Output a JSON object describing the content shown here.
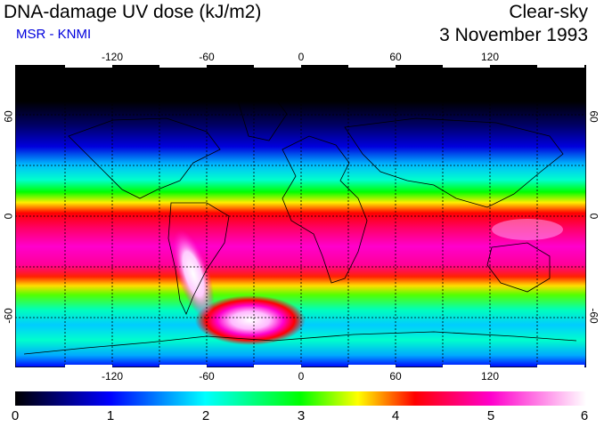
{
  "header": {
    "title": "DNA-damage UV dose (kJ/m2)",
    "subtitle": "MSR - KNMI",
    "sky": "Clear-sky",
    "date": "3 November 1993"
  },
  "axes": {
    "lon_ticks": [
      "-120",
      "-60",
      "0",
      "60",
      "120"
    ],
    "lat_left": [
      "60",
      "0",
      "-60"
    ],
    "lat_right": [
      "60",
      "0",
      "-60"
    ]
  },
  "colorbar": {
    "labels": [
      "0",
      "1",
      "2",
      "3",
      "4",
      "5",
      "6"
    ],
    "colors": [
      "#000000",
      "#0000ff",
      "#00ffff",
      "#00ff00",
      "#ffff00",
      "#ff0000",
      "#ff00ff",
      "#ffffff"
    ]
  },
  "map": {
    "description_colors": {
      "polar_night": "#000000",
      "high_lat_n": "#0000aa",
      "mid_lat": "#00ffee",
      "subtropic": "#00ff22",
      "tropics": "#ff0055",
      "equator": "#ff00cc"
    }
  }
}
